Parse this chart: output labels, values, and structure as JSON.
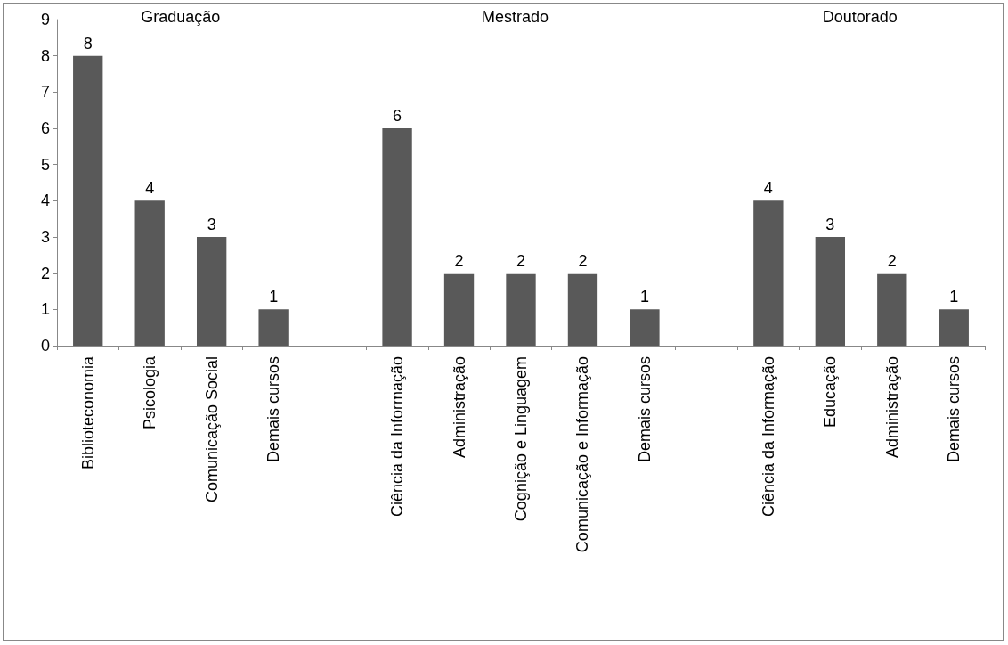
{
  "chart_data": {
    "type": "bar",
    "categories": [
      "Biblioteconomia",
      "Psicologia",
      "Comunicação Social",
      "Demais cursos",
      null,
      "Ciência da Informação",
      "Administração",
      "Cognição e Linguagem",
      "Comunicação e Informação",
      "Demais cursos",
      null,
      "Ciência da Informação",
      "Educação",
      "Administração",
      "Demais cursos"
    ],
    "values": [
      8,
      4,
      3,
      1,
      null,
      6,
      2,
      2,
      2,
      1,
      null,
      4,
      3,
      2,
      1
    ],
    "color": "#595959",
    "ylim": [
      0,
      9
    ],
    "yticks": [
      0,
      1,
      2,
      3,
      4,
      5,
      6,
      7,
      8,
      9
    ],
    "grid": false,
    "data_labels": true,
    "annotations": [
      "Graduação",
      "Mestrado",
      "Doutorado"
    ]
  }
}
